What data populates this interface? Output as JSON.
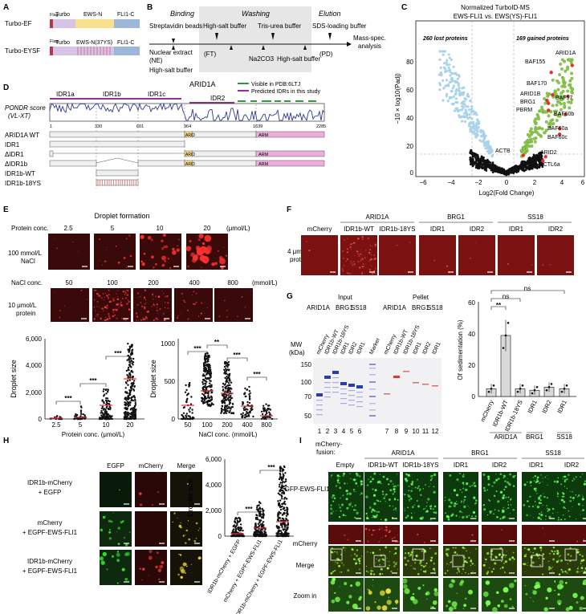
{
  "panelA": {
    "label": "A",
    "rows": [
      {
        "name": "Turbo-EF",
        "flag": "Flag",
        "segs": [
          "Turbo",
          "EWS-N",
          "FLI1-C"
        ]
      },
      {
        "name": "Turbo-EYSF",
        "flag": "Flag",
        "segs": [
          "Turbo",
          "EWS-N(37YS)",
          "FLI1-C"
        ]
      }
    ],
    "colors": {
      "turbo": "#d7c3e6",
      "ews": "#f7e18c",
      "fli": "#9cb7d8",
      "flag": "#b03a4a"
    }
  },
  "panelB": {
    "label": "B",
    "headers": [
      "Binding",
      "Washing",
      "Elution"
    ],
    "top_steps": [
      "Streptavidin beads",
      "High-salt buffer",
      "Tris-urea buffer",
      "SDS-loading buffer"
    ],
    "bottom_steps": [
      "Nuclear extract",
      "(NE)",
      "High-salt buffer",
      "(FT)",
      "Na2CO3",
      "High-salt buffer",
      "(PD)"
    ],
    "end": [
      "Mass-spec.",
      "analysis"
    ]
  },
  "panelC": {
    "label": "C",
    "title1": "Normalized TurboID-MS",
    "title2": "EWS-FLI1 vs. EWS(YS)-FLI1",
    "lost": "260 lost proteins",
    "gained": "169 gained proteins",
    "ylabel": "−10 × log10(Padj)",
    "xlabel": "Log2(Fold Change)",
    "xticks": [
      "−6",
      "−4",
      "−2",
      "0",
      "2",
      "4",
      "6"
    ],
    "yticks": [
      "0",
      "20",
      "40",
      "60",
      "80"
    ],
    "proteins": [
      "ARID1A",
      "BAF155",
      "BAF170",
      "BAF57",
      "ARID1B",
      "BRG1",
      "PBRM",
      "BAF60b",
      "BAF60a",
      "BAF60c",
      "ACTB",
      "ARID2",
      "ACTL6a"
    ],
    "colors": {
      "lost": "#a9d3ea",
      "gained": "#8cc84b",
      "ns": "#111111",
      "hit": "#e0312e"
    }
  },
  "panelD": {
    "label": "D",
    "regions": [
      "IDR1a",
      "IDR1b",
      "IDR1c",
      "ARID1A",
      "IDR2"
    ],
    "legend": [
      "Visible in PDB:6LTJ",
      "Predicted IDRs in this study"
    ],
    "pondr": [
      "PONDR score",
      "(VL-XT)"
    ],
    "constructs": [
      "ARID1A WT",
      "IDR1",
      "ΔIDR1",
      "ΔIDR1b",
      "IDR1b-WT",
      "IDR1b-18YS"
    ],
    "positions": [
      "1",
      "330",
      "601",
      "964",
      "1639",
      "2285"
    ],
    "domains": [
      "ARID",
      "ARM"
    ]
  },
  "panelE": {
    "label": "E",
    "title": "Droplet formation",
    "row1_label": "Protein conc.",
    "row1_vals": [
      "2.5",
      "5",
      "10",
      "20"
    ],
    "row1_unit": "(μmol/L)",
    "row1_side": [
      "100 mmol/L",
      "NaCl"
    ],
    "row2_label": "NaCl conc.",
    "row2_vals": [
      "50",
      "100",
      "200",
      "400",
      "800"
    ],
    "row2_unit": "(mmol/L)",
    "row2_side": [
      "10 μmol/L",
      "protein"
    ],
    "plot1": {
      "ylabel": "Droplet size",
      "yticks": [
        "0",
        "2,000",
        "4,000",
        "6,000"
      ],
      "xticks": [
        "2.5",
        "5",
        "10",
        "20"
      ],
      "xlabel": "Protein conc. (μmol/L)",
      "sig": [
        "***",
        "***",
        "***"
      ]
    },
    "plot2": {
      "ylabel": "Droplet size",
      "yticks": [
        "0",
        "500",
        "1000"
      ],
      "xticks": [
        "50",
        "100",
        "200",
        "400",
        "800"
      ],
      "xlabel": "NaCl conc. (mmol/L)",
      "sig": [
        "***",
        "**",
        "***",
        "***"
      ]
    }
  },
  "panelF": {
    "label": "F",
    "groups": [
      "ARID1A",
      "BRG1",
      "SS18"
    ],
    "cols": [
      "mCherry",
      "IDR1b-WT",
      "IDR1b-18YS",
      "IDR1",
      "IDR2",
      "IDR1",
      "IDR2"
    ],
    "side": [
      "4 μmol/L",
      "protein"
    ]
  },
  "panelG": {
    "label": "G",
    "input": "Input",
    "pellet": "Pellet",
    "groups": [
      "ARID1A",
      "BRG1",
      "SS18"
    ],
    "lanes": [
      "mCherry",
      "IDR1b-WT",
      "IDR1b-18YS",
      "IDR1",
      "IDR2",
      "IDR1",
      "Marker",
      "mCherry",
      "IDR1b-WT",
      "IDR1b-18YS",
      "IDR1",
      "IDR2",
      "IDR1"
    ],
    "mw_label": [
      "MW",
      "(kDa)"
    ],
    "mw": [
      "150",
      "100",
      "70",
      "50"
    ],
    "lane_nums": [
      "1",
      "2",
      "3",
      "4",
      "5",
      "6",
      "7",
      "8",
      "9",
      "10",
      "11",
      "12"
    ],
    "bar": {
      "ylabel": "Of sedimentation (%)",
      "yticks": [
        "0",
        "20",
        "40",
        "60"
      ],
      "cats": [
        "mCherry",
        "IDR1b-WT",
        "IDR1b-18YS",
        "IDR1",
        "IDR2",
        "IDR1"
      ],
      "values": [
        5,
        39,
        5,
        4,
        6,
        5
      ],
      "sig": [
        "**",
        "ns",
        "ns"
      ],
      "groups": [
        "ARID1A",
        "BRG1",
        "SS18"
      ]
    }
  },
  "panelH": {
    "label": "H",
    "cols": [
      "EGFP",
      "mCherry",
      "Merge"
    ],
    "rows": [
      [
        "IDR1b-mCherry",
        "+ EGFP"
      ],
      [
        "mCherry",
        "+ EGPF-EWS-FLI1"
      ],
      [
        "IDR1b-mCherry",
        "+ EGPF-EWS-FLI1"
      ]
    ],
    "plot": {
      "ylabel": "Droplet size",
      "yticks": [
        "0",
        "2,000",
        "4,000",
        "6,000"
      ],
      "cats": [
        "IDR1b-mCherry + EGFP",
        "mCherry + EGPF-EWS-FLI1",
        "IDR1b-mCherry + EGPF-EWS-FLI1"
      ],
      "sig": [
        "***",
        "***"
      ]
    }
  },
  "panelI": {
    "label": "I",
    "fusion": [
      "mCherry-",
      "fusion:"
    ],
    "groups": [
      "ARID1A",
      "BRG1",
      "SS18"
    ],
    "cols": [
      "Empty",
      "IDR1b-WT",
      "IDR1b-18YS",
      "IDR1",
      "IDR2",
      "IDR1",
      "IDR2"
    ],
    "rows": [
      "EGFP-EWS-FLI1",
      "mCherry",
      "Merge",
      "Zoom in"
    ]
  }
}
